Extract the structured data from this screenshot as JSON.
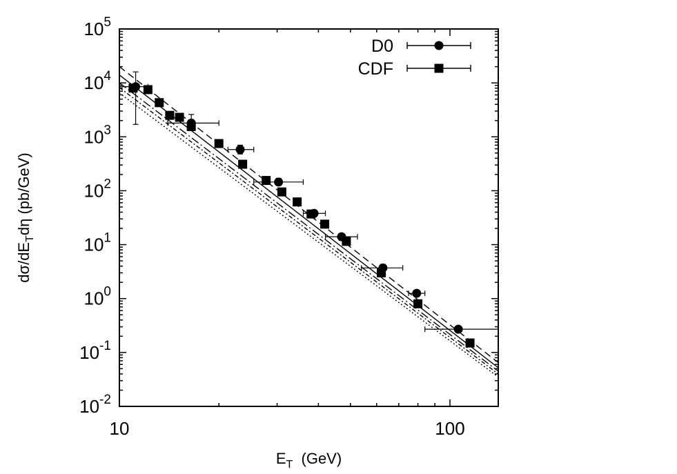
{
  "chart_data": {
    "type": "scatter",
    "title": "",
    "xlabel": {
      "main": "E",
      "sub": "T",
      "rest": "  (GeV)"
    },
    "ylabel": {
      "pre": "dσ/dE",
      "sub": "T",
      "post": "dη (pb/GeV)"
    },
    "xscale": "log",
    "yscale": "log",
    "xlim": [
      10,
      140
    ],
    "ylim": [
      0.01,
      100000
    ],
    "x_ticks": [
      {
        "value": 10,
        "label": "10"
      },
      {
        "value": 100,
        "label": "100"
      }
    ],
    "y_ticks": [
      {
        "value": 0.01,
        "mant": "10",
        "exp": "-2"
      },
      {
        "value": 0.1,
        "mant": "10",
        "exp": "-1"
      },
      {
        "value": 1,
        "mant": "10",
        "exp": "0"
      },
      {
        "value": 10,
        "mant": "10",
        "exp": "1"
      },
      {
        "value": 100,
        "mant": "10",
        "exp": "2"
      },
      {
        "value": 1000,
        "mant": "10",
        "exp": "3"
      },
      {
        "value": 10000,
        "mant": "10",
        "exp": "4"
      },
      {
        "value": 100000,
        "mant": "10",
        "exp": "5"
      }
    ],
    "grid": false,
    "legend_position": "top-right",
    "series": [
      {
        "name": "D0",
        "marker": "circle",
        "points": [
          {
            "x": 11.2,
            "y": 8500,
            "xlo": 10.0,
            "xhi": 12.2,
            "ylo": 1700,
            "yhi": 16000
          },
          {
            "x": 16.5,
            "y": 1800,
            "xlo": 14.0,
            "xhi": 20.0,
            "ylo": 1300,
            "yhi": 2600
          },
          {
            "x": 23.2,
            "y": 580,
            "xlo": 21.3,
            "xhi": 25.5,
            "ylo": 480,
            "yhi": 700
          },
          {
            "x": 30.3,
            "y": 145,
            "xlo": 25.5,
            "xhi": 36.0,
            "ylo": 125,
            "yhi": 170
          },
          {
            "x": 38.8,
            "y": 38,
            "xlo": 36.0,
            "xhi": 42.0,
            "ylo": 33,
            "yhi": 44
          },
          {
            "x": 47.0,
            "y": 14,
            "xlo": 42.0,
            "xhi": 52.5,
            "ylo": 12,
            "yhi": 16
          },
          {
            "x": 62.7,
            "y": 3.7,
            "xlo": 54.0,
            "xhi": 72.0,
            "ylo": 3.2,
            "yhi": 4.3
          },
          {
            "x": 79.3,
            "y": 1.25,
            "xlo": 75.0,
            "xhi": 84.0,
            "ylo": 1.1,
            "yhi": 1.4
          },
          {
            "x": 106.0,
            "y": 0.27,
            "xlo": 84.0,
            "xhi": 140.0,
            "ylo": 0.24,
            "yhi": 0.3
          }
        ]
      },
      {
        "name": "CDF",
        "marker": "square",
        "points": [
          {
            "x": 11.0,
            "y": 8000
          },
          {
            "x": 12.2,
            "y": 7500
          },
          {
            "x": 13.2,
            "y": 4300
          },
          {
            "x": 14.2,
            "y": 2500
          },
          {
            "x": 15.2,
            "y": 2300
          },
          {
            "x": 16.5,
            "y": 1550
          },
          {
            "x": 20.0,
            "y": 750
          },
          {
            "x": 23.6,
            "y": 310
          },
          {
            "x": 27.8,
            "y": 155
          },
          {
            "x": 31.0,
            "y": 95
          },
          {
            "x": 34.5,
            "y": 62
          },
          {
            "x": 38.0,
            "y": 37
          },
          {
            "x": 41.8,
            "y": 24
          },
          {
            "x": 48.6,
            "y": 11.5
          },
          {
            "x": 62.0,
            "y": 3.0
          },
          {
            "x": 80.0,
            "y": 0.8
          },
          {
            "x": 115.0,
            "y": 0.15
          }
        ]
      }
    ],
    "curves": [
      {
        "style": "dashed",
        "points": [
          [
            10,
            20000
          ],
          [
            140,
            0.065
          ]
        ]
      },
      {
        "style": "solid",
        "points": [
          [
            10,
            14000
          ],
          [
            140,
            0.052
          ]
        ]
      },
      {
        "style": "dashdot",
        "points": [
          [
            10,
            10000
          ],
          [
            140,
            0.045
          ]
        ]
      },
      {
        "style": "dashdot2",
        "points": [
          [
            10,
            8200
          ],
          [
            140,
            0.04
          ]
        ]
      },
      {
        "style": "dotted",
        "points": [
          [
            10,
            6500
          ],
          [
            140,
            0.035
          ]
        ]
      }
    ]
  }
}
